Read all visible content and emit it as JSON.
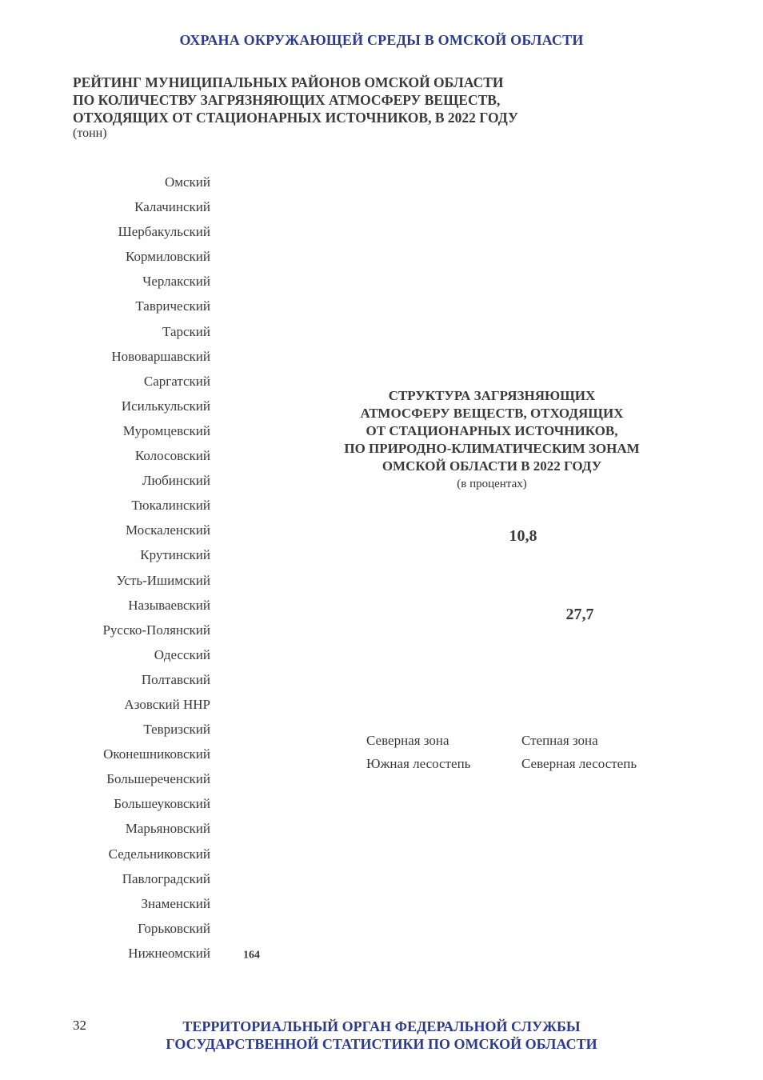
{
  "header": {
    "title": "ОХРАНА ОКРУЖАЮЩЕЙ СРЕДЫ В ОМСКОЙ ОБЛАСТИ"
  },
  "chart_data": [
    {
      "type": "bar",
      "title_lines": [
        "РЕЙТИНГ МУНИЦИПАЛЬНЫХ РАЙОНОВ ОМСКОЙ ОБЛАСТИ",
        "ПО КОЛИЧЕСТВУ ЗАГРЯЗНЯЮЩИХ АТМОСФЕРУ ВЕЩЕСТВ,",
        "ОТХОДЯЩИХ ОТ СТАЦИОНАРНЫХ ИСТОЧНИКОВ, В 2022 ГОДУ"
      ],
      "subtitle": "(тонн)",
      "orientation": "horizontal",
      "categories": [
        "Омский",
        "Калачинский",
        "Шербакульский",
        "Кормиловский",
        "Черлакский",
        "Таврический",
        "Тарский",
        "Нововаршавский",
        "Саргатский",
        "Исилькульский",
        "Муромцевский",
        "Колосовский",
        "Любинский",
        "Тюкалинский",
        "Москаленский",
        "Крутинский",
        "Усть-Ишимский",
        "Называевский",
        "Русско-Полянский",
        "Одесский",
        "Полтавский",
        "Азовский ННР",
        "Тевризский",
        "Оконешниковский",
        "Большереченский",
        "Большеуковский",
        "Марьяновский",
        "Седельниковский",
        "Павлоградский",
        "Знаменский",
        "Горьковский",
        "Нижнеомский"
      ],
      "values": [
        null,
        null,
        null,
        null,
        null,
        null,
        null,
        null,
        null,
        null,
        null,
        null,
        null,
        null,
        null,
        null,
        null,
        null,
        null,
        null,
        null,
        null,
        null,
        null,
        null,
        null,
        null,
        null,
        null,
        null,
        null,
        164
      ],
      "value_labels": [
        "",
        "",
        "",
        "",
        "",
        "",
        "",
        "",
        "",
        "",
        "",
        "",
        "",
        "",
        "",
        "",
        "",
        "",
        "",
        "",
        "",
        "",
        "",
        "",
        "",
        "",
        "",
        "",
        "",
        "",
        "",
        "164"
      ]
    },
    {
      "type": "pie",
      "title_lines": [
        "СТРУКТУРА ЗАГРЯЗНЯЮЩИХ",
        "АТМОСФЕРУ ВЕЩЕСТВ, ОТХОДЯЩИХ",
        "ОТ СТАЦИОНАРНЫХ ИСТОЧНИКОВ,",
        "ПО ПРИРОДНО-КЛИМАТИЧЕСКИМ ЗОНАМ",
        "ОМСКОЙ ОБЛАСТИ В 2022 ГОДУ"
      ],
      "subtitle": "(в процентах)",
      "legend": [
        "Северная зона",
        "Степная зона",
        "Южная лесостепь",
        "Северная лесостепь"
      ],
      "visible_labels": [
        "10,8",
        "27,7"
      ]
    }
  ],
  "footer": {
    "page_number": "32",
    "line1": "ТЕРРИТОРИАЛЬНЫЙ ОРГАН ФЕДЕРАЛЬНОЙ СЛУЖБЫ",
    "line2": "ГОСУДАРСТВЕННОЙ СТАТИСТИКИ ПО ОМСКОЙ ОБЛАСТИ"
  }
}
